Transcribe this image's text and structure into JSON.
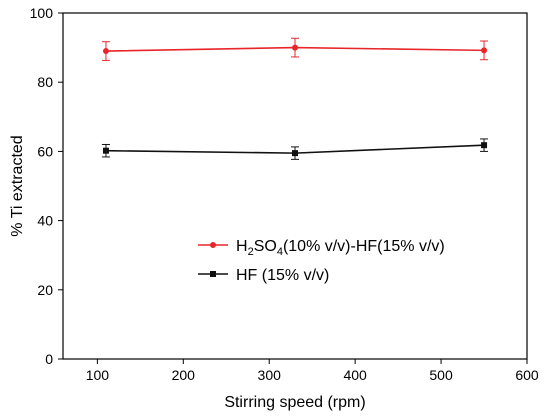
{
  "chart_data": {
    "type": "line",
    "title": "",
    "xlabel": "Stirring speed (rpm)",
    "ylabel": "% Ti extracted",
    "xlim": [
      60,
      600
    ],
    "ylim": [
      0,
      100
    ],
    "xticks": [
      100,
      200,
      300,
      400,
      500,
      600
    ],
    "yticks": [
      0,
      20,
      40,
      60,
      80,
      100
    ],
    "grid": false,
    "legend_position": "center-right",
    "series": [
      {
        "name": "H2SO4(10% v/v)-HF(15% v/v)",
        "legend_parts": [
          {
            "text": "H",
            "sub": false
          },
          {
            "text": "2",
            "sub": true
          },
          {
            "text": "SO",
            "sub": false
          },
          {
            "text": "4",
            "sub": true
          },
          {
            "text": "(10% v/v)-HF(15% v/v)",
            "sub": false
          }
        ],
        "color": "#e8262a",
        "marker": "circle",
        "x": [
          110,
          330,
          550
        ],
        "y": [
          89.0,
          90.0,
          89.2
        ],
        "yerr": [
          2.7,
          2.7,
          2.7
        ]
      },
      {
        "name": "HF (15% v/v)",
        "color": "#111111",
        "marker": "square",
        "x": [
          110,
          330,
          550
        ],
        "y": [
          60.2,
          59.5,
          61.8
        ],
        "yerr": [
          1.8,
          1.8,
          1.8
        ]
      }
    ]
  }
}
